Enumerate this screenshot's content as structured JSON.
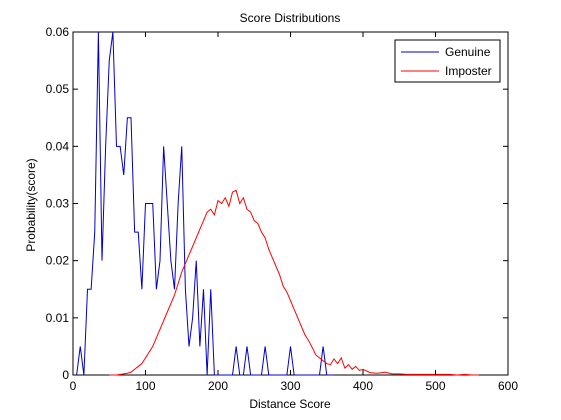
{
  "chart_data": {
    "type": "line",
    "title": "Score Distributions",
    "xlabel": "Distance Score",
    "ylabel": "Probability(score)",
    "xlim": [
      0,
      600
    ],
    "ylim": [
      0,
      0.06
    ],
    "xticks": [
      0,
      100,
      200,
      300,
      400,
      500,
      600
    ],
    "xtick_labels": [
      "0",
      "100",
      "200",
      "300",
      "400",
      "500",
      "600"
    ],
    "yticks": [
      0,
      0.01,
      0.02,
      0.03,
      0.04,
      0.05,
      0.06
    ],
    "ytick_labels": [
      "0",
      "0.01",
      "0.02",
      "0.03",
      "0.04",
      "0.05",
      "0.06"
    ],
    "grid": false,
    "legend_position": "top-right",
    "series": [
      {
        "name": "Genuine",
        "color": "#0000c8",
        "x": [
          0,
          5,
          10,
          15,
          20,
          25,
          30,
          35,
          40,
          45,
          50,
          55,
          60,
          65,
          70,
          75,
          80,
          85,
          90,
          95,
          100,
          105,
          110,
          115,
          120,
          125,
          130,
          135,
          140,
          145,
          150,
          155,
          160,
          165,
          170,
          175,
          180,
          185,
          190,
          195,
          200,
          205,
          210,
          215,
          220,
          225,
          230,
          235,
          240,
          245,
          250,
          255,
          260,
          265,
          270,
          275,
          280,
          285,
          290,
          295,
          300,
          305,
          310,
          315,
          320,
          325,
          330,
          335,
          340,
          345,
          350,
          355,
          360
        ],
        "y": [
          0,
          0,
          0.005,
          0,
          0.015,
          0.015,
          0.025,
          0.06,
          0.02,
          0.04,
          0.055,
          0.06,
          0.04,
          0.04,
          0.035,
          0.045,
          0.045,
          0.025,
          0.025,
          0.015,
          0.03,
          0.03,
          0.03,
          0.015,
          0.02,
          0.04,
          0.03,
          0.02,
          0.015,
          0.03,
          0.04,
          0.015,
          0.005,
          0.01,
          0.02,
          0.005,
          0.015,
          0,
          0.015,
          0,
          0,
          0,
          0,
          0,
          0,
          0.005,
          0,
          0,
          0.005,
          0,
          0,
          0,
          0,
          0.005,
          0,
          0,
          0,
          0,
          0,
          0,
          0.005,
          0,
          0,
          0,
          0,
          0,
          0,
          0,
          0,
          0.005,
          0,
          0,
          0
        ]
      },
      {
        "name": "Imposter",
        "color": "#ff0000",
        "x": [
          50,
          60,
          70,
          75,
          80,
          85,
          90,
          95,
          100,
          105,
          110,
          115,
          120,
          125,
          130,
          135,
          140,
          145,
          150,
          155,
          160,
          165,
          170,
          175,
          180,
          185,
          190,
          195,
          200,
          205,
          210,
          215,
          220,
          225,
          230,
          235,
          240,
          245,
          250,
          255,
          260,
          265,
          270,
          275,
          280,
          285,
          290,
          295,
          300,
          305,
          310,
          315,
          320,
          325,
          330,
          335,
          340,
          345,
          350,
          355,
          360,
          365,
          370,
          375,
          380,
          385,
          390,
          395,
          400,
          410,
          420,
          430,
          440,
          450,
          460,
          470,
          480,
          490,
          500,
          510,
          520,
          530,
          540,
          550,
          560
        ],
        "y": [
          0,
          0,
          0.0002,
          0.0003,
          0.0005,
          0.001,
          0.0015,
          0.002,
          0.003,
          0.004,
          0.005,
          0.0065,
          0.008,
          0.0095,
          0.011,
          0.0125,
          0.014,
          0.016,
          0.018,
          0.0195,
          0.021,
          0.0225,
          0.024,
          0.0255,
          0.027,
          0.0285,
          0.029,
          0.028,
          0.0305,
          0.03,
          0.031,
          0.0295,
          0.032,
          0.0323,
          0.03,
          0.031,
          0.029,
          0.0285,
          0.027,
          0.0265,
          0.025,
          0.024,
          0.022,
          0.0205,
          0.019,
          0.0175,
          0.0155,
          0.0145,
          0.013,
          0.0115,
          0.01,
          0.0085,
          0.007,
          0.006,
          0.0048,
          0.0035,
          0.003,
          0.0025,
          0.002,
          0.0018,
          0.0028,
          0.002,
          0.003,
          0.0012,
          0.0018,
          0.001,
          0.0015,
          0.0008,
          0.001,
          0.0004,
          0.0003,
          0.0005,
          0.0002,
          0.0002,
          0.0001,
          0.0001,
          0.0001,
          0.0001,
          0.0001,
          0.0001,
          0.0001,
          0,
          0.0001,
          0,
          0
        ]
      }
    ]
  }
}
